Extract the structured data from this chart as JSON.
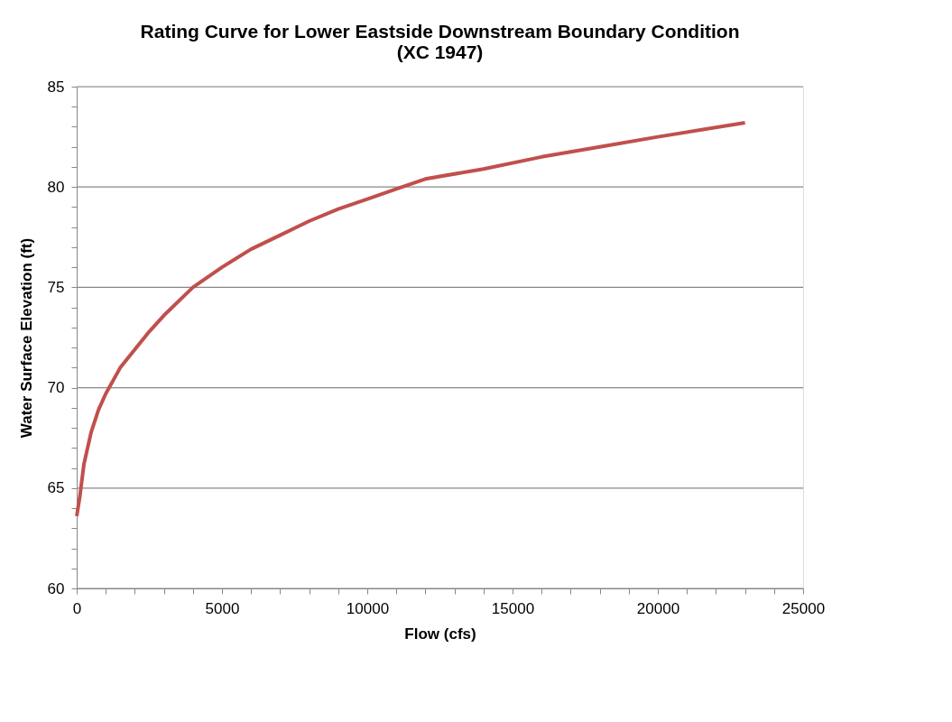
{
  "chart_data": {
    "type": "line",
    "title": "Rating Curve for Lower Eastside Downstream Boundary Condition\n(XC 1947)",
    "xlabel": "Flow (cfs)",
    "ylabel": "Water Surface Elevation (ft)",
    "x": [
      0,
      100,
      250,
      500,
      750,
      1000,
      1500,
      2000,
      2500,
      3000,
      4000,
      5000,
      6000,
      7000,
      8000,
      9000,
      10000,
      11000,
      12000,
      14000,
      16000,
      18000,
      20000,
      23000
    ],
    "series": [
      {
        "color": "#c0504d",
        "values": [
          63.6,
          64.5,
          66.2,
          67.8,
          68.9,
          69.7,
          71.0,
          71.9,
          72.8,
          73.6,
          75.0,
          76.0,
          76.9,
          77.6,
          78.3,
          78.9,
          79.4,
          79.9,
          80.4,
          80.9,
          81.5,
          82.0,
          82.5,
          83.2
        ]
      }
    ],
    "xlim": [
      0,
      25000
    ],
    "ylim": [
      60,
      85
    ],
    "xticks": [
      0,
      {
        "value": 1000,
        "label": null
      },
      {
        "value": 2000,
        "label": null
      },
      {
        "value": 3000,
        "label": null
      },
      {
        "value": 4000,
        "label": null
      },
      5000,
      {
        "value": 6000,
        "label": null
      },
      {
        "value": 7000,
        "label": null
      },
      {
        "value": 8000,
        "label": null
      },
      {
        "value": 9000,
        "label": null
      },
      10000,
      {
        "value": 11000,
        "label": null
      },
      {
        "value": 12000,
        "label": null
      },
      {
        "value": 13000,
        "label": null
      },
      {
        "value": 14000,
        "label": null
      },
      15000,
      {
        "value": 16000,
        "label": null
      },
      {
        "value": 17000,
        "label": null
      },
      {
        "value": 18000,
        "label": null
      },
      {
        "value": 19000,
        "label": null
      },
      20000,
      {
        "value": 21000,
        "label": null
      },
      {
        "value": 22000,
        "label": null
      },
      {
        "value": 23000,
        "label": null
      },
      {
        "value": 24000,
        "label": null
      },
      25000
    ],
    "yticks": [
      60,
      {
        "value": 61,
        "label": null
      },
      {
        "value": 62,
        "label": null
      },
      {
        "value": 63,
        "label": null
      },
      {
        "value": 64,
        "label": null
      },
      65,
      {
        "value": 66,
        "label": null
      },
      {
        "value": 67,
        "label": null
      },
      {
        "value": 68,
        "label": null
      },
      {
        "value": 69,
        "label": null
      },
      70,
      {
        "value": 71,
        "label": null
      },
      {
        "value": 72,
        "label": null
      },
      {
        "value": 73,
        "label": null
      },
      {
        "value": 74,
        "label": null
      },
      75,
      {
        "value": 76,
        "label": null
      },
      {
        "value": 77,
        "label": null
      },
      {
        "value": 78,
        "label": null
      },
      {
        "value": 79,
        "label": null
      },
      80,
      {
        "value": 81,
        "label": null
      },
      {
        "value": 82,
        "label": null
      },
      {
        "value": 83,
        "label": null
      },
      {
        "value": 84,
        "label": null
      },
      85
    ],
    "grid": "y",
    "legend": false,
    "marker": "none",
    "line_style": "solid"
  }
}
